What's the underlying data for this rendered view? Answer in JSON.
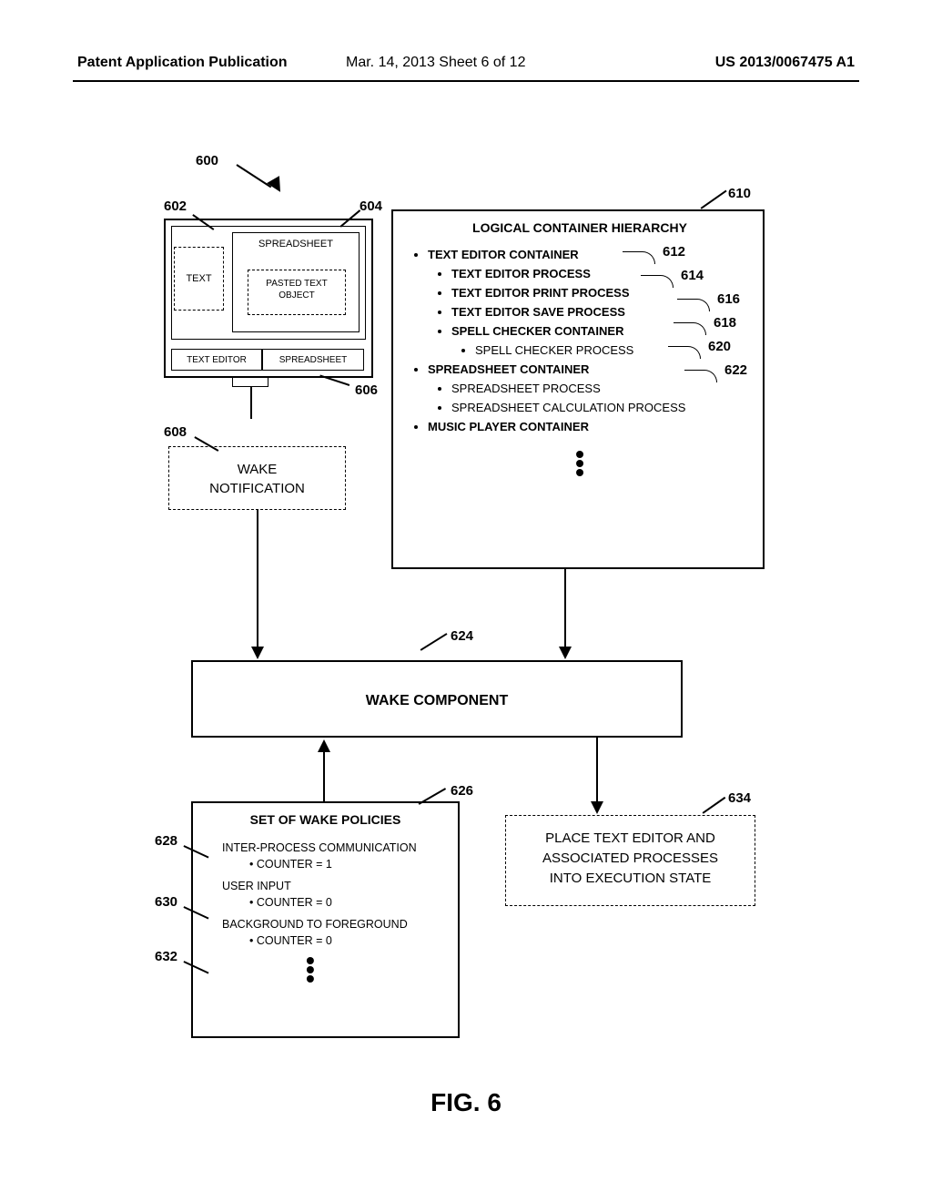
{
  "header": {
    "left": "Patent Application Publication",
    "mid": "Mar. 14, 2013  Sheet 6 of 12",
    "right": "US 2013/0067475 A1"
  },
  "refs": {
    "r600": "600",
    "r602": "602",
    "r604": "604",
    "r606": "606",
    "r608": "608",
    "r610": "610",
    "r612": "612",
    "r614": "614",
    "r616": "616",
    "r618": "618",
    "r620": "620",
    "r622": "622",
    "r624": "624",
    "r626": "626",
    "r628": "628",
    "r630": "630",
    "r632": "632",
    "r634": "634"
  },
  "win602": {
    "text_tab": "TEXT",
    "spreadsheet_label": "SPREADSHEET",
    "pasted_text": "PASTED TEXT\nOBJECT",
    "tab_te": "TEXT EDITOR",
    "tab_ss": "SPREADSHEET"
  },
  "wake_notification": "WAKE\nNOTIFICATION",
  "lch": {
    "title": "LOGICAL CONTAINER HIERARCHY",
    "items": {
      "text_editor_container": "TEXT EDITOR CONTAINER",
      "text_editor_process": "TEXT EDITOR PROCESS",
      "text_editor_print": "TEXT EDITOR PRINT PROCESS",
      "text_editor_save": "TEXT EDITOR SAVE PROCESS",
      "spell_checker_container": "SPELL CHECKER CONTAINER",
      "spell_checker_process": "SPELL CHECKER PROCESS",
      "spreadsheet_container": "SPREADSHEET CONTAINER",
      "spreadsheet_process": "SPREADSHEET PROCESS",
      "spreadsheet_calc": "SPREADSHEET CALCULATION PROCESS",
      "music_player_container": "MUSIC PLAYER CONTAINER"
    }
  },
  "wake_component": "WAKE COMPONENT",
  "policies": {
    "title": "SET OF WAKE POLICIES",
    "p1": "INTER-PROCESS COMMUNICATION",
    "c1": "COUNTER = 1",
    "p2": "USER INPUT",
    "c2": "COUNTER = 0",
    "p3": "BACKGROUND TO FOREGROUND",
    "c3": "COUNTER = 0"
  },
  "result": "PLACE TEXT EDITOR AND\nASSOCIATED PROCESSES\nINTO EXECUTION STATE",
  "figure_label": "FIG. 6"
}
